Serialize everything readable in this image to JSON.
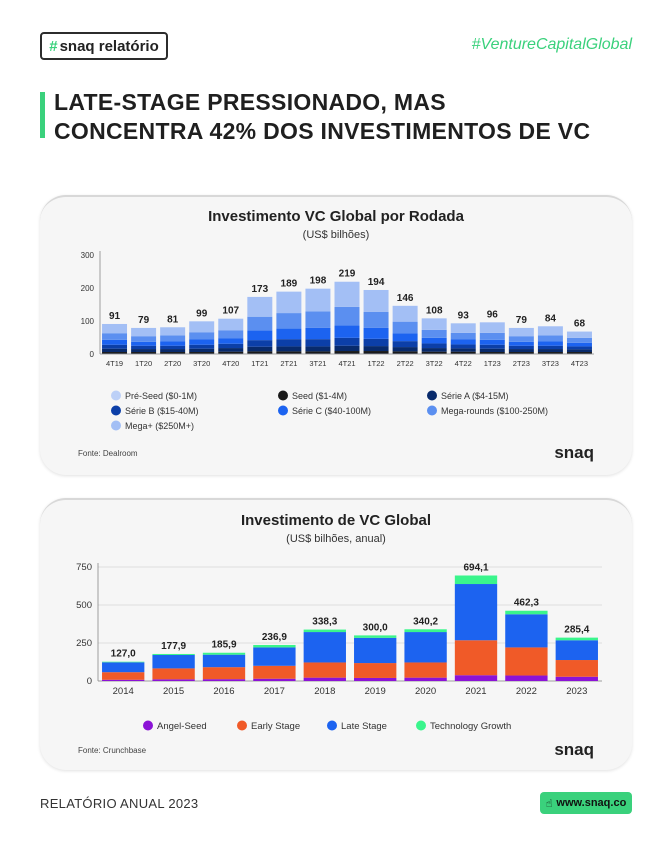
{
  "header": {
    "badge_hash": "#",
    "badge_label": "snaq relatório",
    "hashtag": "#VentureCapitalGlobal"
  },
  "headline": {
    "line1": "LATE-STAGE PRESSIONADO, MAS",
    "line2": "CONCENTRA 42% DOS INVESTIMENTOS DE VC"
  },
  "brand_color": "#3ad17c",
  "chart_data": [
    {
      "type": "bar",
      "stacked": true,
      "title": "Investimento VC Global por Rodada",
      "subtitle": "(US$ bilhões)",
      "ylim": [
        0,
        300
      ],
      "yticks": [
        0,
        100,
        200,
        300
      ],
      "grid": false,
      "legend_position": "bottom",
      "source": "Fonte:  Dealroom",
      "logo": "snaq",
      "categories": [
        "4T19",
        "1T20",
        "2T20",
        "3T20",
        "4T20",
        "1T21",
        "2T21",
        "3T21",
        "4T21",
        "1T22",
        "2T22",
        "3T22",
        "4T22",
        "1T23",
        "2T23",
        "3T23",
        "4T23"
      ],
      "totals": [
        91,
        79,
        81,
        99,
        107,
        173,
        189,
        198,
        219,
        194,
        146,
        108,
        93,
        96,
        79,
        84,
        68
      ],
      "series": [
        {
          "name": "Pré-Seed ($0-1M)",
          "color": "#bcd0f7",
          "values": [
            1,
            1,
            1,
            1,
            1,
            1,
            1,
            1,
            1,
            1,
            1,
            1,
            1,
            1,
            1,
            1,
            1
          ]
        },
        {
          "name": "Seed ($1-4M)",
          "color": "#1a1a1a",
          "values": [
            5,
            5,
            5,
            5,
            6,
            7,
            7,
            7,
            8,
            8,
            7,
            6,
            6,
            5,
            5,
            5,
            5
          ]
        },
        {
          "name": "Série A ($4-15M)",
          "color": "#082a6b",
          "values": [
            10,
            9,
            9,
            10,
            11,
            14,
            15,
            15,
            16,
            15,
            13,
            11,
            10,
            10,
            9,
            9,
            8
          ]
        },
        {
          "name": "Série B ($15-40M)",
          "color": "#0c3fa8",
          "values": [
            12,
            10,
            10,
            12,
            13,
            20,
            22,
            22,
            24,
            22,
            18,
            14,
            12,
            12,
            10,
            10,
            9
          ]
        },
        {
          "name": "Série C ($40-100M)",
          "color": "#1c63f0",
          "values": [
            15,
            12,
            13,
            16,
            17,
            29,
            32,
            34,
            38,
            33,
            24,
            17,
            15,
            15,
            12,
            13,
            11
          ]
        },
        {
          "name": "Mega-rounds ($100-250M)",
          "color": "#5b8ff0",
          "values": [
            20,
            17,
            18,
            22,
            24,
            42,
            47,
            50,
            56,
            49,
            35,
            24,
            20,
            21,
            17,
            18,
            15
          ]
        },
        {
          "name": "Mega+ ($250M+)",
          "color": "#a3bff5",
          "values": [
            28,
            25,
            25,
            33,
            35,
            60,
            65,
            69,
            76,
            66,
            48,
            35,
            29,
            32,
            25,
            28,
            19
          ]
        }
      ]
    },
    {
      "type": "bar",
      "stacked": true,
      "title": "Investimento de VC Global",
      "subtitle": "(US$ bilhões, anual)",
      "ylim": [
        0,
        750
      ],
      "yticks": [
        0,
        250,
        500,
        750
      ],
      "grid": true,
      "legend_position": "bottom",
      "source": "Fonte:  Crunchbase",
      "logo": "snaq",
      "categories": [
        "2014",
        "2015",
        "2016",
        "2017",
        "2018",
        "2019",
        "2020",
        "2021",
        "2022",
        "2023"
      ],
      "totals": [
        127.0,
        177.9,
        185.9,
        236.9,
        338.3,
        300.0,
        340.2,
        694.1,
        462.3,
        285.4
      ],
      "total_labels": [
        "127,0",
        "177,9",
        "185,9",
        "236,9",
        "338,3",
        "300,0",
        "340,2",
        "694,1",
        "462,3",
        "285,4"
      ],
      "series": [
        {
          "name": "Angel-Seed",
          "color": "#8b13d6",
          "values": [
            8,
            11,
            12,
            15,
            22,
            20,
            22,
            38,
            36,
            28
          ]
        },
        {
          "name": "Early Stage",
          "color": "#f05a28",
          "values": [
            50,
            72,
            79,
            85,
            100,
            98,
            100,
            230,
            185,
            110
          ]
        },
        {
          "name": "Late Stage",
          "color": "#1c63f0",
          "values": [
            65,
            88,
            82,
            121,
            200,
            166,
            200,
            370,
            218,
            130
          ]
        },
        {
          "name": "Technology Growth",
          "color": "#3af58c",
          "values": [
            4,
            6.9,
            12.9,
            15.9,
            16.3,
            16,
            18.2,
            56.1,
            23.3,
            17.4
          ]
        }
      ]
    }
  ],
  "footer": {
    "report": "RELATÓRIO ANUAL 2023",
    "website": "www.snaq.co"
  }
}
